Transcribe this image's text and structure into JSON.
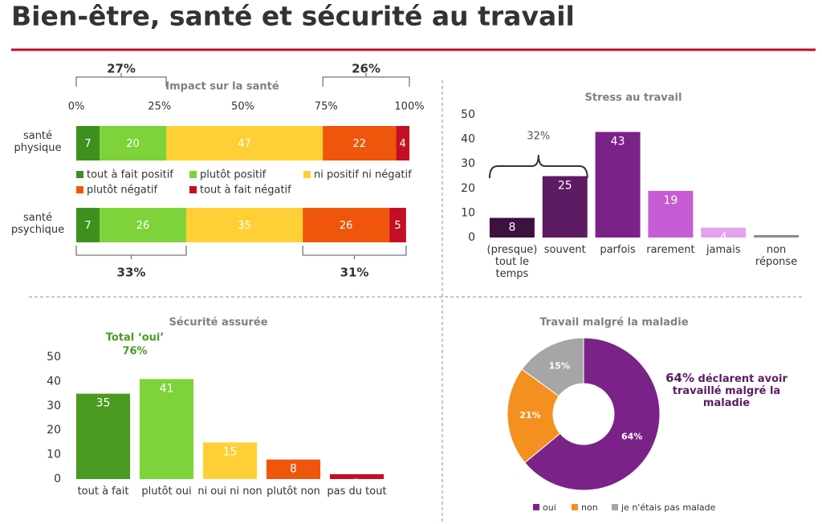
{
  "header": {
    "title": "Bien-être, santé et sécurité au travail"
  },
  "chart_data": [
    {
      "type": "stacked-barh",
      "title": "Impact sur la santé",
      "categories": [
        "santé physique",
        "santé psychique"
      ],
      "series": [
        {
          "name": "tout à fait positif",
          "color": "#3f8f1f",
          "values": [
            7,
            7
          ]
        },
        {
          "name": "plutôt positif",
          "color": "#7ed23a",
          "values": [
            20,
            26
          ]
        },
        {
          "name": "ni positif ni négatif",
          "color": "#ffd035",
          "values": [
            47,
            35
          ]
        },
        {
          "name": "plutôt négatif",
          "color": "#ef560c",
          "values": [
            22,
            26
          ]
        },
        {
          "name": "tout à fait négatif",
          "color": "#c40f22",
          "values": [
            4,
            5
          ]
        }
      ],
      "xlim": [
        0,
        100
      ],
      "xticks": [
        {
          "value": 0,
          "label": "0%"
        },
        {
          "value": 25,
          "label": "25%"
        },
        {
          "value": 50,
          "label": "50%"
        },
        {
          "value": 75,
          "label": "75%"
        },
        {
          "value": 100,
          "label": "100%"
        }
      ],
      "annotations": [
        "27%",
        "26%",
        "33%",
        "31%"
      ],
      "legend": "between-bars"
    },
    {
      "type": "bar",
      "title": "Stress au travail",
      "categories": [
        "(presque) tout le temps",
        "souvent",
        "parfois",
        "rarement",
        "jamais",
        "non réponse"
      ],
      "values": [
        8,
        25,
        43,
        19,
        4,
        1
      ],
      "value_labels": [
        "8",
        "25",
        "43",
        "19",
        "4",
        null
      ],
      "colors": [
        "#3d1040",
        "#5c1b62",
        "#7b2289",
        "#c65cd3",
        "#e4a2ec",
        "#8c8c8c"
      ],
      "ylim": [
        0,
        50
      ],
      "yticks": [
        0,
        10,
        20,
        30,
        40,
        50
      ],
      "annotations": [
        "32%"
      ]
    },
    {
      "type": "bar",
      "title": "Sécurité assurée",
      "categories": [
        "tout à fait",
        "plutôt oui",
        "ni oui ni non",
        "plutôt non",
        "pas du tout"
      ],
      "values": [
        35,
        41,
        15,
        8,
        2
      ],
      "colors": [
        "#4a9a22",
        "#7ed23a",
        "#ffd035",
        "#ef560c",
        "#c40f22"
      ],
      "ylim": [
        0,
        50
      ],
      "yticks": [
        0,
        10,
        20,
        30,
        40,
        50
      ],
      "annotations": [
        "Total ‘oui’",
        "76%"
      ]
    },
    {
      "type": "donut",
      "title": "Travail malgré la maladie",
      "categories": [
        "oui",
        "non",
        "je n'étais pas malade"
      ],
      "values": [
        64,
        21,
        15
      ],
      "value_labels": [
        "64%",
        "21%",
        "15%"
      ],
      "colors": [
        "#7b2289",
        "#f39020",
        "#a6a6a6"
      ],
      "annotations": [
        "64%",
        "déclarent avoir travaillé malgré la maladie"
      ],
      "legend": "bottom"
    }
  ]
}
